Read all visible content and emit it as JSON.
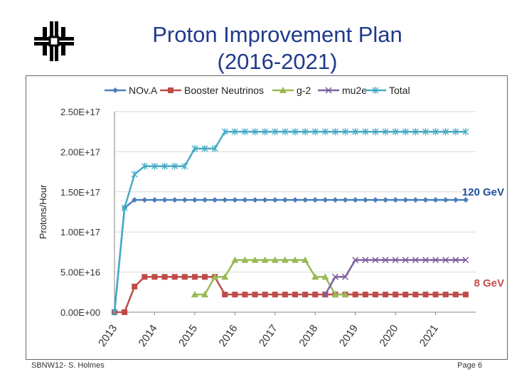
{
  "slide": {
    "title_line1": "Proton Improvement Plan",
    "title_line2": "(2016-2021)",
    "footer_left": "SBNW12- S. Holmes",
    "footer_right": "Page 6",
    "logo_icon": "fermilab-logo-icon"
  },
  "chart_data": {
    "type": "line",
    "ylabel": "Protons/Hour",
    "ylim": [
      0,
      2.5e+17
    ],
    "y_ticks": [
      "0.00E+00",
      "5.00E+16",
      "1.00E+17",
      "1.50E+17",
      "2.00E+17",
      "2.50E+17"
    ],
    "x_tick_labels": [
      "2013",
      "2014",
      "2015",
      "2016",
      "2017",
      "2018",
      "2019",
      "2020",
      "2021"
    ],
    "x_tick_values": [
      2013.0,
      2014.0,
      2015.0,
      2016.0,
      2017.0,
      2018.0,
      2019.0,
      2020.0,
      2021.0
    ],
    "xlim": [
      2013.0,
      2022.0
    ],
    "grid": "horizontal",
    "legend_position": "top",
    "annotations": [
      {
        "text": "120 GeV",
        "color": "#1f4e9a",
        "y": 1.5e+17
      },
      {
        "text": "8 GeV",
        "color": "#c0504d",
        "y": 4.5e+16
      }
    ],
    "series": [
      {
        "name": "NOv.A",
        "color": "#4a7ebb",
        "marker": "diamond",
        "points": [
          [
            2013.0,
            0
          ],
          [
            2013.25,
            1.3e+17
          ],
          [
            2013.5,
            1.4e+17
          ],
          [
            2013.75,
            1.4e+17
          ],
          [
            2014.0,
            1.4e+17
          ],
          [
            2014.25,
            1.4e+17
          ],
          [
            2014.5,
            1.4e+17
          ],
          [
            2014.75,
            1.4e+17
          ],
          [
            2015.0,
            1.4e+17
          ],
          [
            2015.25,
            1.4e+17
          ],
          [
            2015.5,
            1.4e+17
          ],
          [
            2015.75,
            1.4e+17
          ],
          [
            2016.0,
            1.4e+17
          ],
          [
            2016.25,
            1.4e+17
          ],
          [
            2016.5,
            1.4e+17
          ],
          [
            2016.75,
            1.4e+17
          ],
          [
            2017.0,
            1.4e+17
          ],
          [
            2017.25,
            1.4e+17
          ],
          [
            2017.5,
            1.4e+17
          ],
          [
            2017.75,
            1.4e+17
          ],
          [
            2018.0,
            1.4e+17
          ],
          [
            2018.25,
            1.4e+17
          ],
          [
            2018.5,
            1.4e+17
          ],
          [
            2018.75,
            1.4e+17
          ],
          [
            2019.0,
            1.4e+17
          ],
          [
            2019.25,
            1.4e+17
          ],
          [
            2019.5,
            1.4e+17
          ],
          [
            2019.75,
            1.4e+17
          ],
          [
            2020.0,
            1.4e+17
          ],
          [
            2020.25,
            1.4e+17
          ],
          [
            2020.5,
            1.4e+17
          ],
          [
            2020.75,
            1.4e+17
          ],
          [
            2021.0,
            1.4e+17
          ],
          [
            2021.25,
            1.4e+17
          ],
          [
            2021.5,
            1.4e+17
          ],
          [
            2021.75,
            1.4e+17
          ]
        ]
      },
      {
        "name": "Booster Neutrinos",
        "color": "#be4b48",
        "marker": "square",
        "points": [
          [
            2013.0,
            0
          ],
          [
            2013.25,
            0
          ],
          [
            2013.5,
            3.2e+16
          ],
          [
            2013.75,
            4.4e+16
          ],
          [
            2014.0,
            4.4e+16
          ],
          [
            2014.25,
            4.4e+16
          ],
          [
            2014.5,
            4.4e+16
          ],
          [
            2014.75,
            4.4e+16
          ],
          [
            2015.0,
            4.4e+16
          ],
          [
            2015.25,
            4.4e+16
          ],
          [
            2015.5,
            4.4e+16
          ],
          [
            2015.75,
            2.2e+16
          ],
          [
            2016.0,
            2.2e+16
          ],
          [
            2016.25,
            2.2e+16
          ],
          [
            2016.5,
            2.2e+16
          ],
          [
            2016.75,
            2.2e+16
          ],
          [
            2017.0,
            2.2e+16
          ],
          [
            2017.25,
            2.2e+16
          ],
          [
            2017.5,
            2.2e+16
          ],
          [
            2017.75,
            2.2e+16
          ],
          [
            2018.0,
            2.2e+16
          ],
          [
            2018.25,
            2.2e+16
          ],
          [
            2018.5,
            2.2e+16
          ],
          [
            2018.75,
            2.2e+16
          ],
          [
            2019.0,
            2.2e+16
          ],
          [
            2019.25,
            2.2e+16
          ],
          [
            2019.5,
            2.2e+16
          ],
          [
            2019.75,
            2.2e+16
          ],
          [
            2020.0,
            2.2e+16
          ],
          [
            2020.25,
            2.2e+16
          ],
          [
            2020.5,
            2.2e+16
          ],
          [
            2020.75,
            2.2e+16
          ],
          [
            2021.0,
            2.2e+16
          ],
          [
            2021.25,
            2.2e+16
          ],
          [
            2021.5,
            2.2e+16
          ],
          [
            2021.75,
            2.2e+16
          ]
        ]
      },
      {
        "name": "g-2",
        "color": "#98b954",
        "marker": "triangle",
        "points": [
          [
            2015.0,
            2.2e+16
          ],
          [
            2015.25,
            2.2e+16
          ],
          [
            2015.5,
            4.4e+16
          ],
          [
            2015.75,
            4.4e+16
          ],
          [
            2016.0,
            6.5e+16
          ],
          [
            2016.25,
            6.5e+16
          ],
          [
            2016.5,
            6.5e+16
          ],
          [
            2016.75,
            6.5e+16
          ],
          [
            2017.0,
            6.5e+16
          ],
          [
            2017.25,
            6.5e+16
          ],
          [
            2017.5,
            6.5e+16
          ],
          [
            2017.75,
            6.5e+16
          ],
          [
            2018.0,
            4.4e+16
          ],
          [
            2018.25,
            4.4e+16
          ],
          [
            2018.5,
            2.2e+16
          ],
          [
            2018.75,
            2.2e+16
          ]
        ]
      },
      {
        "name": "mu2e",
        "color": "#7d60a0",
        "marker": "x",
        "points": [
          [
            2018.25,
            2.2e+16
          ],
          [
            2018.5,
            4.4e+16
          ],
          [
            2018.75,
            4.4e+16
          ],
          [
            2019.0,
            6.5e+16
          ],
          [
            2019.25,
            6.5e+16
          ],
          [
            2019.5,
            6.5e+16
          ],
          [
            2019.75,
            6.5e+16
          ],
          [
            2020.0,
            6.5e+16
          ],
          [
            2020.25,
            6.5e+16
          ],
          [
            2020.5,
            6.5e+16
          ],
          [
            2020.75,
            6.5e+16
          ],
          [
            2021.0,
            6.5e+16
          ],
          [
            2021.25,
            6.5e+16
          ],
          [
            2021.5,
            6.5e+16
          ],
          [
            2021.75,
            6.5e+16
          ]
        ]
      },
      {
        "name": "Total",
        "color": "#46aac5",
        "marker": "star",
        "points": [
          [
            2013.0,
            0
          ],
          [
            2013.25,
            1.3e+17
          ],
          [
            2013.5,
            1.72e+17
          ],
          [
            2013.75,
            1.82e+17
          ],
          [
            2014.0,
            1.82e+17
          ],
          [
            2014.25,
            1.82e+17
          ],
          [
            2014.5,
            1.82e+17
          ],
          [
            2014.75,
            1.82e+17
          ],
          [
            2015.0,
            2.04e+17
          ],
          [
            2015.25,
            2.04e+17
          ],
          [
            2015.5,
            2.04e+17
          ],
          [
            2015.75,
            2.25e+17
          ],
          [
            2016.0,
            2.25e+17
          ],
          [
            2016.25,
            2.25e+17
          ],
          [
            2016.5,
            2.25e+17
          ],
          [
            2016.75,
            2.25e+17
          ],
          [
            2017.0,
            2.25e+17
          ],
          [
            2017.25,
            2.25e+17
          ],
          [
            2017.5,
            2.25e+17
          ],
          [
            2017.75,
            2.25e+17
          ],
          [
            2018.0,
            2.25e+17
          ],
          [
            2018.25,
            2.25e+17
          ],
          [
            2018.5,
            2.25e+17
          ],
          [
            2018.75,
            2.25e+17
          ],
          [
            2019.0,
            2.25e+17
          ],
          [
            2019.25,
            2.25e+17
          ],
          [
            2019.5,
            2.25e+17
          ],
          [
            2019.75,
            2.25e+17
          ],
          [
            2020.0,
            2.25e+17
          ],
          [
            2020.25,
            2.25e+17
          ],
          [
            2020.5,
            2.25e+17
          ],
          [
            2020.75,
            2.25e+17
          ],
          [
            2021.0,
            2.25e+17
          ],
          [
            2021.25,
            2.25e+17
          ],
          [
            2021.5,
            2.25e+17
          ],
          [
            2021.75,
            2.25e+17
          ]
        ]
      }
    ]
  }
}
